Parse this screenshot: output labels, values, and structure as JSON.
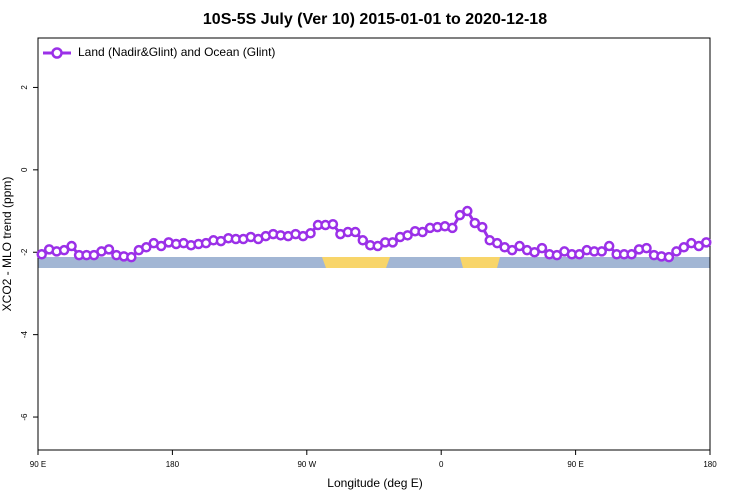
{
  "chart_data": {
    "type": "line",
    "title": "10S-5S July (Ver 10)   2015-01-01 to 2020-12-18",
    "x_label": "Longitude (deg E)",
    "y_label": "XCO2 - MLO trend (ppm)",
    "xlim": [
      90,
      540
    ],
    "xticks": [
      {
        "value": 90,
        "label": "90 E"
      },
      180,
      {
        "value": 270,
        "label": "90 W"
      },
      {
        "value": 360,
        "label": "0"
      },
      {
        "value": 450,
        "label": "90 E"
      },
      {
        "value": 540,
        "label": "180"
      }
    ],
    "ylim": [
      -6.8,
      3.2
    ],
    "yticks": [
      -6,
      -4,
      -2,
      0,
      2
    ],
    "legend": "top-left",
    "x": [
      92.5,
      97.5,
      102.5,
      107.5,
      112.5,
      117.5,
      122.5,
      127.5,
      132.5,
      137.5,
      142.5,
      147.5,
      152.5,
      157.5,
      162.5,
      167.5,
      172.5,
      177.5,
      182.5,
      187.5,
      192.5,
      197.5,
      202.5,
      207.5,
      212.5,
      217.5,
      222.5,
      227.5,
      232.5,
      237.5,
      242.5,
      247.5,
      252.5,
      257.5,
      262.5,
      267.5,
      272.5,
      277.5,
      282.5,
      287.5,
      292.5,
      297.5,
      302.5,
      307.5,
      312.5,
      317.5,
      322.5,
      327.5,
      332.5,
      337.5,
      342.5,
      347.5,
      352.5,
      357.5,
      362.5,
      367.5,
      372.5,
      377.5,
      382.5,
      387.5,
      392.5,
      397.5,
      402.5,
      407.5,
      412.5,
      417.5,
      422.5,
      427.5,
      432.5,
      437.5,
      442.5,
      447.5,
      452.5,
      457.5,
      462.5,
      467.5,
      472.5,
      477.5,
      482.5,
      487.5,
      492.5,
      497.5,
      502.5,
      507.5,
      512.5,
      517.5,
      522.5,
      527.5,
      532.5,
      537.5
    ],
    "series": [
      {
        "name": "Land (Nadir&Glint) and Ocean (Glint)",
        "color": "#9b30e8",
        "values": [
          -2.05,
          -1.93,
          -1.98,
          -1.95,
          -1.85,
          -2.07,
          -2.07,
          -2.07,
          -1.98,
          -1.93,
          -2.07,
          -2.1,
          -2.12,
          -1.95,
          -1.88,
          -1.78,
          -1.85,
          -1.76,
          -1.8,
          -1.78,
          -1.83,
          -1.8,
          -1.78,
          -1.71,
          -1.73,
          -1.66,
          -1.68,
          -1.68,
          -1.63,
          -1.68,
          -1.61,
          -1.56,
          -1.59,
          -1.61,
          -1.56,
          -1.61,
          -1.54,
          -1.34,
          -1.34,
          -1.32,
          -1.56,
          -1.51,
          -1.51,
          -1.71,
          -1.83,
          -1.85,
          -1.76,
          -1.76,
          -1.63,
          -1.59,
          -1.49,
          -1.51,
          -1.41,
          -1.39,
          -1.37,
          -1.41,
          -1.1,
          -1.0,
          -1.29,
          -1.39,
          -1.71,
          -1.78,
          -1.88,
          -1.95,
          -1.85,
          -1.95,
          -2.0,
          -1.9,
          -2.05,
          -2.07,
          -1.98,
          -2.05,
          -2.05,
          -1.95,
          -1.98,
          -1.98,
          -1.85,
          -2.05,
          -2.05,
          -2.05,
          -1.93,
          -1.9,
          -2.07,
          -2.1,
          -2.12,
          -1.98,
          -1.88,
          -1.78,
          -1.85,
          -1.76
        ]
      }
    ]
  }
}
